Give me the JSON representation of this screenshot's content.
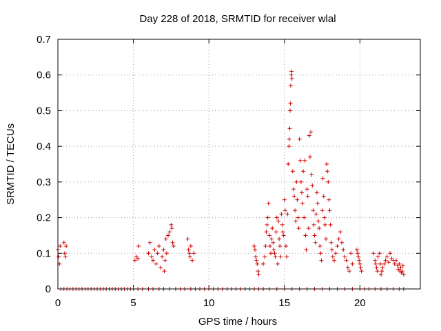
{
  "chart_data": {
    "type": "scatter",
    "title": "Day 228 of 2018, SRMTID for receiver wlal",
    "xlabel": "GPS time / hours",
    "ylabel": "SRMTID / TECUs",
    "xlim": [
      0,
      24
    ],
    "ylim": [
      0,
      0.7
    ],
    "x_ticks": [
      0,
      5,
      10,
      15,
      20
    ],
    "x_tick_labels": [
      "0",
      "5",
      "10",
      "15",
      "20"
    ],
    "y_ticks": [
      0,
      0.1,
      0.2,
      0.3,
      0.4,
      0.5,
      0.6,
      0.7
    ],
    "y_tick_labels": [
      "0",
      "0.1",
      "0.2",
      "0.3",
      "0.4",
      "0.5",
      "0.6",
      "0.7"
    ],
    "grid": true,
    "marker": "+",
    "color": "#d00000",
    "series": [
      {
        "name": "SRMTID",
        "points": [
          [
            0.0,
            0.11
          ],
          [
            0.05,
            0.09
          ],
          [
            0.1,
            0.07
          ],
          [
            0.15,
            0.12
          ],
          [
            0.4,
            0.13
          ],
          [
            0.45,
            0.1
          ],
          [
            0.5,
            0.09
          ],
          [
            0.55,
            0.12
          ],
          [
            5.1,
            0.08
          ],
          [
            5.2,
            0.09
          ],
          [
            5.3,
            0.085
          ],
          [
            5.35,
            0.12
          ],
          [
            6.0,
            0.1
          ],
          [
            6.1,
            0.13
          ],
          [
            6.2,
            0.09
          ],
          [
            6.3,
            0.08
          ],
          [
            6.4,
            0.11
          ],
          [
            6.5,
            0.07
          ],
          [
            6.6,
            0.1
          ],
          [
            6.7,
            0.12
          ],
          [
            6.8,
            0.06
          ],
          [
            6.9,
            0.09
          ],
          [
            7.0,
            0.11
          ],
          [
            7.05,
            0.05
          ],
          [
            7.1,
            0.08
          ],
          [
            7.15,
            0.14
          ],
          [
            7.2,
            0.1
          ],
          [
            7.3,
            0.15
          ],
          [
            7.4,
            0.16
          ],
          [
            7.5,
            0.18
          ],
          [
            7.55,
            0.17
          ],
          [
            7.6,
            0.13
          ],
          [
            7.65,
            0.12
          ],
          [
            8.6,
            0.14
          ],
          [
            8.65,
            0.11
          ],
          [
            8.7,
            0.1
          ],
          [
            8.75,
            0.09
          ],
          [
            8.8,
            0.12
          ],
          [
            8.9,
            0.08
          ],
          [
            9.0,
            0.1
          ],
          [
            13.0,
            0.12
          ],
          [
            13.05,
            0.11
          ],
          [
            13.1,
            0.09
          ],
          [
            13.15,
            0.08
          ],
          [
            13.2,
            0.07
          ],
          [
            13.25,
            0.05
          ],
          [
            13.3,
            0.04
          ],
          [
            13.6,
            0.07
          ],
          [
            13.7,
            0.09
          ],
          [
            13.75,
            0.12
          ],
          [
            13.8,
            0.16
          ],
          [
            13.85,
            0.18
          ],
          [
            13.9,
            0.2
          ],
          [
            13.95,
            0.24
          ],
          [
            14.0,
            0.15
          ],
          [
            14.05,
            0.12
          ],
          [
            14.1,
            0.1
          ],
          [
            14.15,
            0.14
          ],
          [
            14.2,
            0.17
          ],
          [
            14.25,
            0.13
          ],
          [
            14.3,
            0.11
          ],
          [
            14.35,
            0.1
          ],
          [
            14.4,
            0.09
          ],
          [
            14.45,
            0.16
          ],
          [
            14.5,
            0.2
          ],
          [
            14.55,
            0.07
          ],
          [
            14.6,
            0.19
          ],
          [
            14.65,
            0.14
          ],
          [
            14.7,
            0.12
          ],
          [
            14.75,
            0.09
          ],
          [
            14.8,
            0.21
          ],
          [
            14.85,
            0.18
          ],
          [
            14.9,
            0.16
          ],
          [
            14.95,
            0.15
          ],
          [
            15.0,
            0.25
          ],
          [
            15.05,
            0.22
          ],
          [
            15.1,
            0.12
          ],
          [
            15.15,
            0.09
          ],
          [
            15.2,
            0.21
          ],
          [
            15.25,
            0.35
          ],
          [
            15.3,
            0.4
          ],
          [
            15.32,
            0.42
          ],
          [
            15.35,
            0.45
          ],
          [
            15.38,
            0.5
          ],
          [
            15.4,
            0.52
          ],
          [
            15.42,
            0.57
          ],
          [
            15.45,
            0.6
          ],
          [
            15.47,
            0.61
          ],
          [
            15.5,
            0.59
          ],
          [
            15.55,
            0.33
          ],
          [
            15.6,
            0.28
          ],
          [
            15.65,
            0.26
          ],
          [
            15.7,
            0.22
          ],
          [
            15.75,
            0.19
          ],
          [
            15.8,
            0.3
          ],
          [
            15.85,
            0.25
          ],
          [
            15.9,
            0.2
          ],
          [
            15.95,
            0.17
          ],
          [
            16.0,
            0.42
          ],
          [
            16.05,
            0.36
          ],
          [
            16.1,
            0.3
          ],
          [
            16.15,
            0.27
          ],
          [
            16.2,
            0.24
          ],
          [
            16.25,
            0.33
          ],
          [
            16.3,
            0.2
          ],
          [
            16.35,
            0.36
          ],
          [
            16.4,
            0.15
          ],
          [
            16.45,
            0.11
          ],
          [
            16.5,
            0.28
          ],
          [
            16.55,
            0.26
          ],
          [
            16.6,
            0.17
          ],
          [
            16.65,
            0.43
          ],
          [
            16.7,
            0.37
          ],
          [
            16.75,
            0.44
          ],
          [
            16.8,
            0.32
          ],
          [
            16.85,
            0.29
          ],
          [
            16.9,
            0.22
          ],
          [
            16.95,
            0.18
          ],
          [
            17.0,
            0.15
          ],
          [
            17.05,
            0.13
          ],
          [
            17.1,
            0.21
          ],
          [
            17.15,
            0.27
          ],
          [
            17.2,
            0.24
          ],
          [
            17.25,
            0.19
          ],
          [
            17.3,
            0.17
          ],
          [
            17.35,
            0.12
          ],
          [
            17.4,
            0.1
          ],
          [
            17.45,
            0.08
          ],
          [
            17.5,
            0.22
          ],
          [
            17.55,
            0.31
          ],
          [
            17.6,
            0.26
          ],
          [
            17.65,
            0.2
          ],
          [
            17.7,
            0.18
          ],
          [
            17.75,
            0.14
          ],
          [
            17.8,
            0.35
          ],
          [
            17.85,
            0.33
          ],
          [
            17.9,
            0.3
          ],
          [
            17.95,
            0.25
          ],
          [
            18.0,
            0.22
          ],
          [
            18.05,
            0.18
          ],
          [
            18.1,
            0.13
          ],
          [
            18.15,
            0.11
          ],
          [
            18.2,
            0.09
          ],
          [
            18.3,
            0.08
          ],
          [
            18.4,
            0.1
          ],
          [
            18.5,
            0.12
          ],
          [
            18.6,
            0.14
          ],
          [
            18.7,
            0.16
          ],
          [
            18.8,
            0.13
          ],
          [
            18.9,
            0.11
          ],
          [
            19.0,
            0.09
          ],
          [
            19.1,
            0.08
          ],
          [
            19.2,
            0.06
          ],
          [
            19.3,
            0.05
          ],
          [
            19.4,
            0.1
          ],
          [
            19.5,
            0.07
          ],
          [
            19.8,
            0.11
          ],
          [
            19.85,
            0.1
          ],
          [
            19.9,
            0.09
          ],
          [
            19.95,
            0.08
          ],
          [
            20.0,
            0.07
          ],
          [
            20.05,
            0.06
          ],
          [
            20.1,
            0.05
          ],
          [
            20.9,
            0.1
          ],
          [
            21.0,
            0.08
          ],
          [
            21.05,
            0.07
          ],
          [
            21.1,
            0.06
          ],
          [
            21.15,
            0.05
          ],
          [
            21.2,
            0.09
          ],
          [
            21.3,
            0.1
          ],
          [
            21.35,
            0.07
          ],
          [
            21.4,
            0.04
          ],
          [
            21.45,
            0.05
          ],
          [
            21.5,
            0.06
          ],
          [
            21.6,
            0.07
          ],
          [
            21.7,
            0.08
          ],
          [
            21.8,
            0.09
          ],
          [
            21.9,
            0.075
          ],
          [
            22.0,
            0.1
          ],
          [
            22.1,
            0.085
          ],
          [
            22.2,
            0.08
          ],
          [
            22.3,
            0.07
          ],
          [
            22.4,
            0.08
          ],
          [
            22.5,
            0.065
          ],
          [
            22.55,
            0.055
          ],
          [
            22.6,
            0.07
          ],
          [
            22.65,
            0.05
          ],
          [
            22.7,
            0.06
          ],
          [
            22.75,
            0.045
          ],
          [
            22.8,
            0.05
          ],
          [
            22.85,
            0.065
          ],
          [
            22.9,
            0.04
          ],
          [
            0.2,
            0.0
          ],
          [
            0.4,
            0.0
          ],
          [
            0.6,
            0.0
          ],
          [
            0.8,
            0.0
          ],
          [
            1.0,
            0.0
          ],
          [
            1.2,
            0.0
          ],
          [
            1.4,
            0.0
          ],
          [
            1.6,
            0.0
          ],
          [
            1.8,
            0.0
          ],
          [
            2.0,
            0.0
          ],
          [
            2.2,
            0.0
          ],
          [
            2.4,
            0.0
          ],
          [
            2.6,
            0.0
          ],
          [
            2.8,
            0.0
          ],
          [
            3.0,
            0.0
          ],
          [
            3.2,
            0.0
          ],
          [
            3.4,
            0.0
          ],
          [
            3.6,
            0.0
          ],
          [
            3.8,
            0.0
          ],
          [
            4.0,
            0.0
          ],
          [
            4.2,
            0.0
          ],
          [
            4.4,
            0.0
          ],
          [
            4.6,
            0.0
          ],
          [
            4.8,
            0.0
          ],
          [
            5.0,
            0.0
          ],
          [
            5.3,
            0.0
          ],
          [
            5.6,
            0.0
          ],
          [
            6.0,
            0.0
          ],
          [
            6.3,
            0.0
          ],
          [
            6.7,
            0.0
          ],
          [
            7.0,
            0.0
          ],
          [
            7.4,
            0.0
          ],
          [
            7.8,
            0.0
          ],
          [
            8.1,
            0.0
          ],
          [
            8.4,
            0.0
          ],
          [
            8.8,
            0.0
          ],
          [
            9.1,
            0.0
          ],
          [
            9.4,
            0.0
          ],
          [
            9.7,
            0.0
          ],
          [
            10.0,
            0.0
          ],
          [
            10.3,
            0.0
          ],
          [
            10.6,
            0.0
          ],
          [
            10.9,
            0.0
          ],
          [
            11.2,
            0.0
          ],
          [
            11.5,
            0.0
          ],
          [
            11.8,
            0.0
          ],
          [
            12.1,
            0.0
          ],
          [
            12.4,
            0.0
          ],
          [
            12.7,
            0.0
          ],
          [
            13.0,
            0.0
          ],
          [
            13.3,
            0.0
          ],
          [
            13.6,
            0.0
          ],
          [
            14.0,
            0.0
          ],
          [
            14.5,
            0.0
          ],
          [
            15.0,
            0.0
          ],
          [
            15.5,
            0.0
          ],
          [
            16.0,
            0.0
          ],
          [
            16.5,
            0.0
          ],
          [
            17.0,
            0.0
          ],
          [
            17.5,
            0.0
          ],
          [
            18.0,
            0.0
          ],
          [
            18.5,
            0.0
          ],
          [
            19.0,
            0.0
          ],
          [
            19.5,
            0.0
          ],
          [
            20.0,
            0.0
          ],
          [
            20.3,
            0.0
          ],
          [
            20.6,
            0.0
          ],
          [
            21.0,
            0.0
          ],
          [
            21.4,
            0.0
          ],
          [
            21.8,
            0.0
          ],
          [
            22.2,
            0.0
          ],
          [
            22.6,
            0.0
          ],
          [
            22.9,
            0.0
          ]
        ]
      }
    ]
  }
}
